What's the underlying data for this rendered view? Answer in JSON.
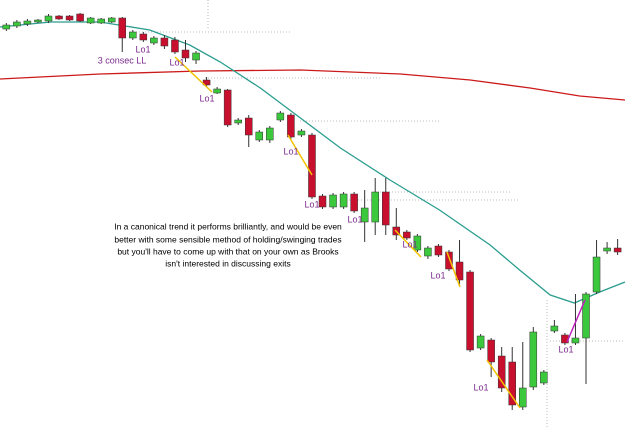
{
  "chart_data": {
    "type": "candlestick",
    "xlim": [
      -0.6,
      58.7
    ],
    "ylim": [
      0,
      427
    ],
    "up_color": "#3cc83c",
    "down_color": "#c8102e",
    "wick_color": "#333333",
    "open": [
      398,
      401,
      403,
      405,
      406,
      411,
      411,
      413,
      404,
      404,
      405,
      409,
      389,
      393,
      384,
      389,
      387,
      377,
      367,
      347,
      334,
      337,
      304,
      309,
      287,
      287,
      307,
      312,
      292,
      292,
      231,
      220,
      220,
      233,
      205,
      205,
      235,
      200,
      195,
      177,
      171,
      181,
      175,
      165,
      155,
      79,
      87,
      71,
      65,
      20,
      40,
      44,
      96,
      92,
      84,
      89,
      135,
      176,
      179
    ],
    "high": [
      404,
      407,
      408,
      408,
      413,
      412,
      412,
      414,
      410,
      409,
      410,
      410,
      397,
      395,
      391,
      392,
      390,
      387,
      376,
      350,
      340,
      338,
      309,
      312,
      297,
      301,
      316,
      314,
      298,
      294,
      233,
      234,
      235,
      235,
      237,
      249,
      249,
      219,
      197,
      193,
      181,
      183,
      177,
      187,
      157,
      93,
      89,
      80,
      80,
      85,
      100,
      57,
      107,
      94,
      133,
      135,
      187,
      185,
      188
    ],
    "low": [
      396,
      399,
      401,
      404,
      404,
      407,
      406,
      405,
      403,
      403,
      404,
      375,
      387,
      385,
      382,
      378,
      373,
      365,
      363,
      340,
      333,
      300,
      302,
      280,
      285,
      284,
      305,
      288,
      290,
      228,
      218,
      218,
      218,
      214,
      185,
      192,
      192,
      187,
      187,
      175,
      168,
      170,
      156,
      142,
      75,
      77,
      50,
      35,
      17,
      17,
      37,
      42,
      94,
      82,
      82,
      43,
      133,
      173,
      172
    ],
    "close": [
      402,
      405,
      406,
      407,
      411,
      408,
      407,
      406,
      409,
      408,
      409,
      389,
      395,
      387,
      389,
      381,
      375,
      369,
      374,
      342,
      338,
      302,
      307,
      292,
      295,
      299,
      314,
      290,
      296,
      230,
      220,
      232,
      233,
      216,
      219,
      235,
      202,
      192,
      189,
      191,
      179,
      172,
      158,
      147,
      77,
      91,
      65,
      39,
      22,
      39,
      95,
      55,
      101,
      84,
      89,
      133,
      170,
      179,
      175
    ],
    "lines": [
      {
        "color": "#cc1a1a",
        "x": [
          -0.6,
          8.9,
          18.4,
          27.9,
          37.4,
          44.0,
          49.7,
          54.4,
          58.7
        ],
        "values": [
          348,
          353,
          356,
          357,
          353,
          347,
          339,
          331,
          327
        ]
      },
      {
        "color": "#2a9d8f",
        "x": [
          -0.6,
          4.2,
          8.9,
          13.6,
          17.4,
          20.3,
          24.1,
          27.9,
          31.7,
          36.4,
          41.1,
          45.9,
          48.7,
          51.6,
          53.9,
          56.3,
          58.7
        ],
        "values": [
          400,
          405,
          405,
          397,
          382,
          365,
          339,
          309,
          279,
          247,
          217,
          182,
          157,
          132,
          124,
          135,
          145
        ]
      }
    ],
    "annotations": [
      "Lo1",
      "3 consec LL",
      "Lo1",
      "Lo1",
      "Lo1",
      "Lo1",
      "Lo1",
      "Lo1",
      "Lo1",
      "Lo1",
      "Lo1"
    ],
    "note_lines": [
      "In a canonical trend it performs brilliantly, and would be even",
      "better with some sensible method of holding/swinging trades",
      "but you'll have to come up with that on your own as Brooks",
      "isn't interested in discussing exits"
    ]
  }
}
